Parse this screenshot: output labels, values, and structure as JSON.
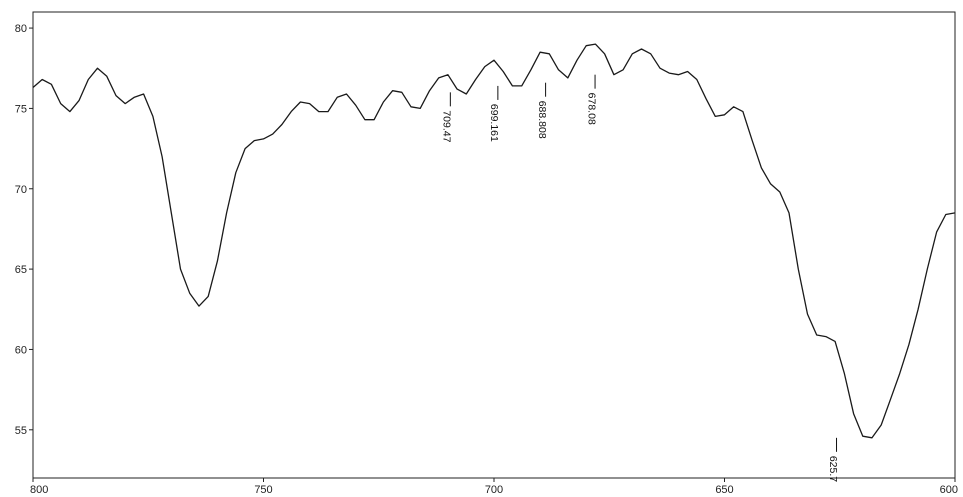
{
  "chart_data": {
    "type": "line",
    "title": "",
    "xlabel": "",
    "ylabel": "",
    "xlim": [
      800,
      600
    ],
    "ylim": [
      52,
      81
    ],
    "grid": false,
    "x_ticks": [
      800,
      750,
      700,
      650,
      600
    ],
    "x_tick_labels": [
      "800",
      "750",
      "700",
      "650",
      "600"
    ],
    "y_ticks": [
      55,
      60,
      65,
      70,
      75,
      80
    ],
    "y_tick_labels": [
      "55",
      "60",
      "65",
      "70",
      "75",
      "80"
    ],
    "series": [
      {
        "x": [
          800,
          798,
          796,
          794,
          792,
          790,
          788,
          786,
          784,
          782,
          780,
          778,
          776,
          774,
          772,
          770,
          768,
          766,
          764,
          762,
          760,
          758,
          756,
          754,
          752,
          750,
          748,
          746,
          744,
          742,
          740,
          738,
          736,
          734,
          732,
          730,
          728,
          726,
          724,
          722,
          720,
          718,
          716,
          714,
          712,
          710,
          708,
          706,
          704,
          702,
          700,
          698,
          696,
          694,
          692,
          690,
          688,
          686,
          684,
          682,
          680,
          678,
          676,
          674,
          672,
          670,
          668,
          666,
          664,
          662,
          660,
          658,
          656,
          654,
          652,
          650,
          648,
          646,
          644,
          642,
          640,
          638,
          636,
          634,
          632,
          630,
          628,
          626,
          624,
          622,
          620,
          618,
          616,
          614,
          612,
          610,
          608,
          606,
          604,
          602,
          600
        ],
        "y": [
          76.3,
          76.8,
          76.5,
          75.3,
          74.8,
          75.5,
          76.8,
          77.5,
          77.0,
          75.8,
          75.3,
          75.7,
          75.9,
          74.5,
          72.0,
          68.5,
          65.0,
          63.5,
          62.7,
          63.3,
          65.5,
          68.5,
          71.0,
          72.5,
          73.0,
          73.1,
          73.4,
          74.0,
          74.8,
          75.4,
          75.3,
          74.8,
          74.8,
          75.7,
          75.9,
          75.2,
          74.3,
          74.3,
          75.4,
          76.1,
          76.0,
          75.1,
          75.0,
          76.1,
          76.9,
          77.1,
          76.2,
          75.9,
          76.8,
          77.6,
          78.0,
          77.3,
          76.4,
          76.4,
          77.4,
          78.5,
          78.4,
          77.4,
          76.9,
          78.0,
          78.9,
          79.0,
          78.4,
          77.1,
          77.4,
          78.4,
          78.7,
          78.4,
          77.5,
          77.2,
          77.1,
          77.3,
          76.8,
          75.6,
          74.5,
          74.6,
          75.1,
          74.8,
          73.0,
          71.3,
          70.3,
          69.8,
          68.5,
          65.0,
          62.2,
          60.9,
          60.8,
          60.5,
          58.5,
          56.0,
          54.6,
          54.5,
          55.3,
          56.9,
          58.5,
          60.3,
          62.5,
          65.0,
          67.3,
          68.4,
          68.5
        ]
      }
    ],
    "annotations": [
      {
        "x": 709.47,
        "y": 76.0,
        "label": "709.47"
      },
      {
        "x": 699.161,
        "y": 76.4,
        "label": "699.161"
      },
      {
        "x": 688.808,
        "y": 76.6,
        "label": "688.808"
      },
      {
        "x": 678.08,
        "y": 77.1,
        "label": "678.08"
      },
      {
        "x": 625.7,
        "y": 54.5,
        "label": "625.7"
      }
    ],
    "line_color": "#1a1a1a"
  }
}
